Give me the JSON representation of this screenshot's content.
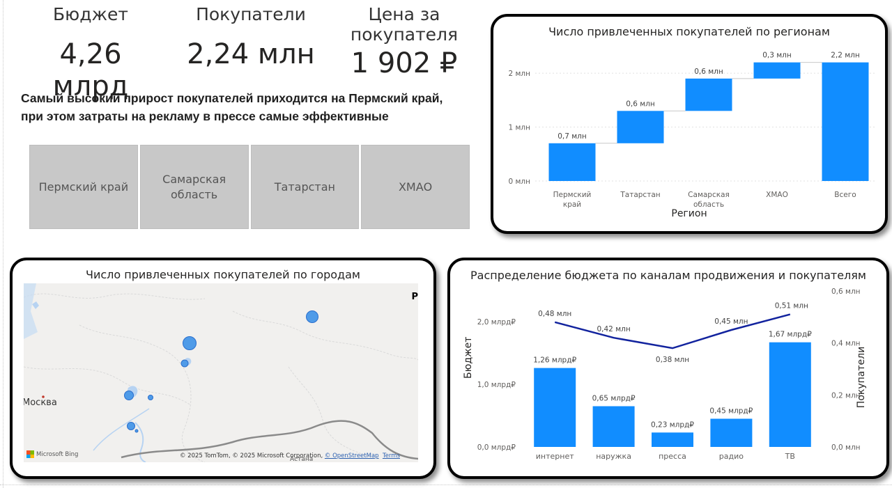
{
  "kpis": [
    {
      "label": "Бюджет",
      "value": "4,26 млрд"
    },
    {
      "label": "Покупатели",
      "value": "2,24 млн"
    },
    {
      "label": "Цена за покупателя",
      "value": "1 902 ₽"
    }
  ],
  "insight": {
    "line1": "Самый высокий прирост покупателей приходится на Пермский край,",
    "line2": "при этом затраты на рекламу в прессе самые эффективные"
  },
  "slicer": {
    "items": [
      "Пермский край",
      "Самарская область",
      "Татарстан",
      "ХМАО"
    ]
  },
  "waterfall": {
    "title": "Число привлеченных покупателей по регионам",
    "xlabel": "Регион"
  },
  "map": {
    "title": "Число привлеченных покупателей по городам",
    "city_label": "Москва",
    "astana_label": "Астана",
    "bing_label": "Microsoft Bing",
    "copyright": "© 2025 TomTom, © 2025 Microsoft Corporation,",
    "osm_link": "© OpenStreetMap",
    "terms_link": "Terms",
    "edge_letter": "P"
  },
  "combo": {
    "title": "Распределение бюджета по каналам продвижения и покупателям",
    "ylabel_left": "Бюджет",
    "ylabel_right": "Покупатели"
  },
  "colors": {
    "bar": "#118DFF",
    "line": "#12239E",
    "connector": "#c8c8c8"
  },
  "chart_data": [
    {
      "type": "bar",
      "subtype": "waterfall",
      "title": "Число привлеченных покупателей по регионам",
      "xlabel": "Регион",
      "categories": [
        "Пермский край",
        "Татарстан",
        "Самарская область",
        "ХМАО",
        "Всего"
      ],
      "values": [
        0.7,
        0.6,
        0.6,
        0.3,
        2.2
      ],
      "cumulative_start": [
        0,
        0.7,
        1.3,
        1.9,
        0
      ],
      "cumulative_end": [
        0.7,
        1.3,
        1.9,
        2.2,
        2.2
      ],
      "data_labels": [
        "0,7 млн",
        "0,6 млн",
        "0,6 млн",
        "0,3 млн",
        "2,2 млн"
      ],
      "yticks": [
        "0 млн",
        "1 млн",
        "2 млн"
      ],
      "ytick_values": [
        0,
        1,
        2
      ],
      "ylim": [
        0,
        2.35
      ],
      "grid": true
    },
    {
      "type": "bar",
      "subtype": "combo-bar-line",
      "title": "Распределение бюджета по каналам продвижения и покупателям",
      "xlabel": "",
      "ylabel": "Бюджет",
      "y2label": "Покупатели",
      "categories": [
        "интернет",
        "наружка",
        "пресса",
        "радио",
        "ТВ"
      ],
      "series": [
        {
          "name": "Бюджет",
          "kind": "bar",
          "values": [
            1.26,
            0.65,
            0.23,
            0.45,
            1.67
          ],
          "data_labels": [
            "1,26 млрд₽",
            "0,65 млрд₽",
            "0,23 млрд₽",
            "0,45 млрд₽",
            "1,67 млрд₽"
          ]
        },
        {
          "name": "Покупатели",
          "kind": "line",
          "axis": "right",
          "values": [
            0.48,
            0.42,
            0.38,
            0.45,
            0.51
          ],
          "data_labels": [
            "0,48 млн",
            "0,42 млн",
            "0,38 млн",
            "0,45 млн",
            "0,51 млн"
          ]
        }
      ],
      "yticks": [
        "0,0 млрд₽",
        "1,0 млрд₽",
        "2,0 млрд₽"
      ],
      "ytick_values": [
        0,
        1,
        2
      ],
      "ylim": [
        0,
        2.0
      ],
      "y2ticks": [
        "0,0 млн",
        "0,2 млн",
        "0,4 млн",
        "0,6 млн"
      ],
      "y2tick_values": [
        0,
        0.2,
        0.4,
        0.6
      ],
      "y2lim": [
        0,
        0.6
      ]
    }
  ]
}
